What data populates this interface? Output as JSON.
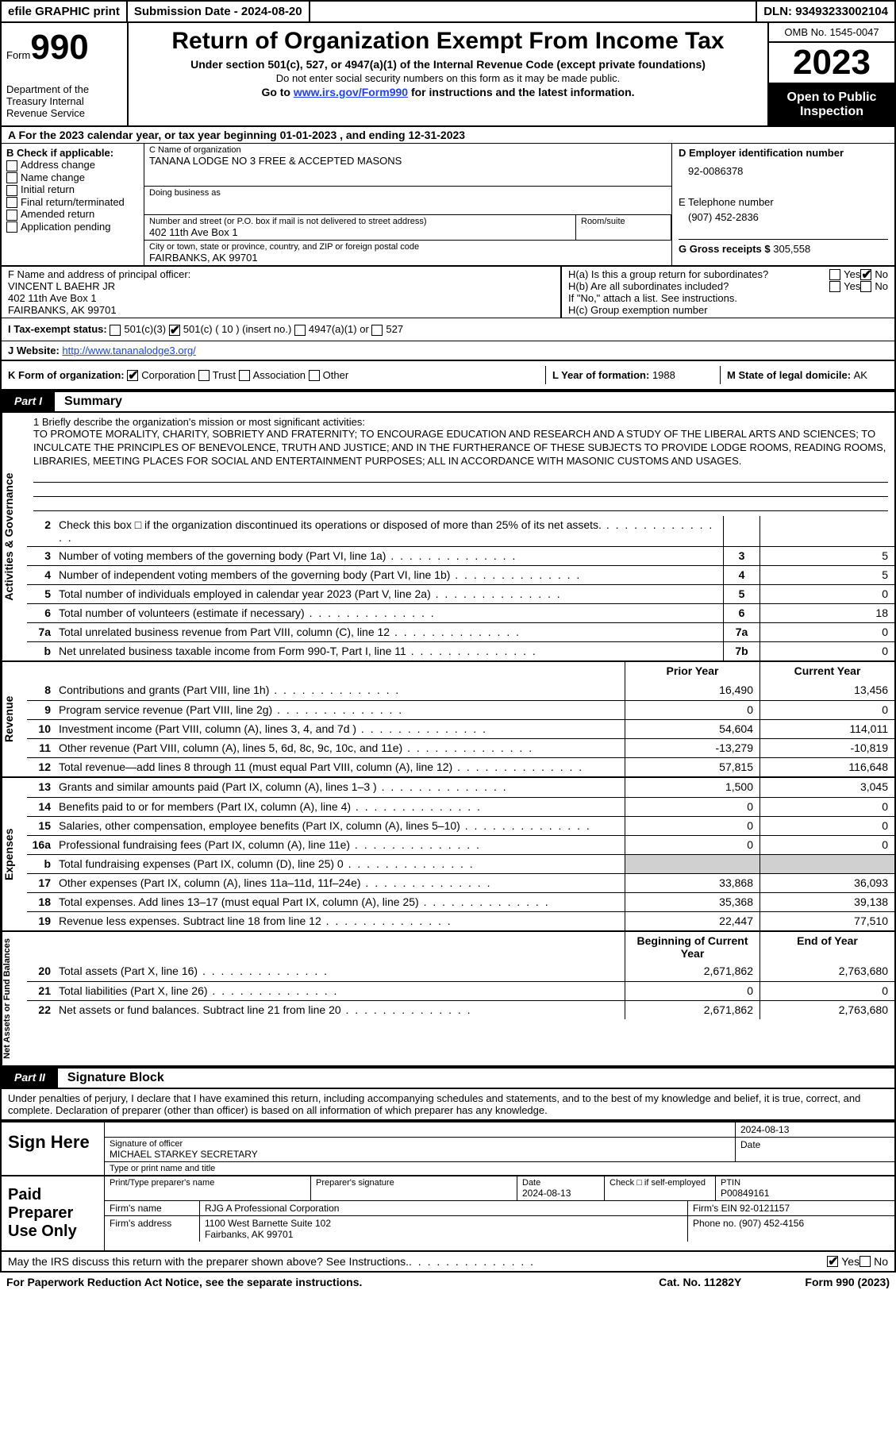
{
  "topbar": {
    "efile": "efile GRAPHIC print",
    "submission_label": "Submission Date - ",
    "submission_date": "2024-08-20",
    "dln_label": "DLN: ",
    "dln": "93493233002104"
  },
  "header": {
    "form_prefix": "Form",
    "form_no": "990",
    "dept": "Department of the Treasury Internal Revenue Service",
    "title": "Return of Organization Exempt From Income Tax",
    "sub": "Under section 501(c), 527, or 4947(a)(1) of the Internal Revenue Code (except private foundations)",
    "note": "Do not enter social security numbers on this form as it may be made public.",
    "goto_prefix": "Go to ",
    "goto_link": "www.irs.gov/Form990",
    "goto_suffix": " for instructions and the latest information.",
    "omb": "OMB No. 1545-0047",
    "year": "2023",
    "inspection": "Open to Public Inspection"
  },
  "rowA": "A  For the 2023 calendar year, or tax year beginning 01-01-2023    , and ending 12-31-2023",
  "colB": {
    "title": "B Check if applicable:",
    "items": [
      "Address change",
      "Name change",
      "Initial return",
      "Final return/terminated",
      "Amended return",
      "Application pending"
    ]
  },
  "colC": {
    "name_label": "C Name of organization",
    "name": "TANANA LODGE NO 3 FREE & ACCEPTED MASONS",
    "dba_label": "Doing business as",
    "dba": "",
    "street_label": "Number and street (or P.O. box if mail is not delivered to street address)",
    "street": "402 11th Ave Box 1",
    "room_label": "Room/suite",
    "city_label": "City or town, state or province, country, and ZIP or foreign postal code",
    "city": "FAIRBANKS, AK  99701"
  },
  "colD": {
    "ein_label": "D Employer identification number",
    "ein": "92-0086378",
    "phone_label": "E Telephone number",
    "phone": "(907) 452-2836",
    "gross_label": "G Gross receipts $ ",
    "gross": "305,558"
  },
  "rowF": {
    "label": "F  Name and address of principal officer:",
    "name": "VINCENT L BAEHR JR",
    "addr1": "402 11th Ave Box 1",
    "addr2": "FAIRBANKS, AK  99701"
  },
  "rowH": {
    "a_label": "H(a)  Is this a group return for subordinates?",
    "b_label": "H(b)  Are all subordinates included?",
    "b_note": "If \"No,\" attach a list. See instructions.",
    "c_label": "H(c)  Group exemption number"
  },
  "rowI": {
    "label": "I   Tax-exempt status:",
    "opts": [
      "501(c)(3)",
      "501(c) ( 10 ) (insert no.)",
      "4947(a)(1) or",
      "527"
    ]
  },
  "rowJ": {
    "label": "J   Website:",
    "value": "http://www.tananalodge3.org/"
  },
  "rowK": {
    "label": "K Form of organization:",
    "opts": [
      "Corporation",
      "Trust",
      "Association",
      "Other"
    ],
    "L_label": "L Year of formation: ",
    "L_val": "1988",
    "M_label": "M State of legal domicile: ",
    "M_val": "AK"
  },
  "part1": {
    "tab": "Part I",
    "title": "Summary"
  },
  "mission": {
    "label": "1   Briefly describe the organization's mission or most significant activities:",
    "text": "TO PROMOTE MORALITY, CHARITY, SOBRIETY AND FRATERNITY; TO ENCOURAGE EDUCATION AND RESEARCH AND A STUDY OF THE LIBERAL ARTS AND SCIENCES; TO INCULCATE THE PRINCIPLES OF BENEVOLENCE, TRUTH AND JUSTICE; AND IN THE FURTHERANCE OF THESE SUBJECTS TO PROVIDE LODGE ROOMS, READING ROOMS, LIBRARIES, MEETING PLACES FOR SOCIAL AND ENTERTAINMENT PURPOSES; ALL IN ACCORDANCE WITH MASONIC CUSTOMS AND USAGES."
  },
  "lines_gov": [
    {
      "n": "2",
      "desc": "Check this box □  if the organization discontinued its operations or disposed of more than 25% of its net assets.",
      "box": "",
      "v": ""
    },
    {
      "n": "3",
      "desc": "Number of voting members of the governing body (Part VI, line 1a)",
      "box": "3",
      "v": "5"
    },
    {
      "n": "4",
      "desc": "Number of independent voting members of the governing body (Part VI, line 1b)",
      "box": "4",
      "v": "5"
    },
    {
      "n": "5",
      "desc": "Total number of individuals employed in calendar year 2023 (Part V, line 2a)",
      "box": "5",
      "v": "0"
    },
    {
      "n": "6",
      "desc": "Total number of volunteers (estimate if necessary)",
      "box": "6",
      "v": "18"
    },
    {
      "n": "7a",
      "desc": "Total unrelated business revenue from Part VIII, column (C), line 12",
      "box": "7a",
      "v": "0"
    },
    {
      "n": "b",
      "desc": "Net unrelated business taxable income from Form 990-T, Part I, line 11",
      "box": "7b",
      "v": "0"
    }
  ],
  "col_headers": {
    "prior": "Prior Year",
    "current": "Current Year"
  },
  "lines_rev": [
    {
      "n": "8",
      "desc": "Contributions and grants (Part VIII, line 1h)",
      "p": "16,490",
      "c": "13,456"
    },
    {
      "n": "9",
      "desc": "Program service revenue (Part VIII, line 2g)",
      "p": "0",
      "c": "0"
    },
    {
      "n": "10",
      "desc": "Investment income (Part VIII, column (A), lines 3, 4, and 7d )",
      "p": "54,604",
      "c": "114,011"
    },
    {
      "n": "11",
      "desc": "Other revenue (Part VIII, column (A), lines 5, 6d, 8c, 9c, 10c, and 11e)",
      "p": "-13,279",
      "c": "-10,819"
    },
    {
      "n": "12",
      "desc": "Total revenue—add lines 8 through 11 (must equal Part VIII, column (A), line 12)",
      "p": "57,815",
      "c": "116,648"
    }
  ],
  "lines_exp": [
    {
      "n": "13",
      "desc": "Grants and similar amounts paid (Part IX, column (A), lines 1–3 )",
      "p": "1,500",
      "c": "3,045"
    },
    {
      "n": "14",
      "desc": "Benefits paid to or for members (Part IX, column (A), line 4)",
      "p": "0",
      "c": "0"
    },
    {
      "n": "15",
      "desc": "Salaries, other compensation, employee benefits (Part IX, column (A), lines 5–10)",
      "p": "0",
      "c": "0"
    },
    {
      "n": "16a",
      "desc": "Professional fundraising fees (Part IX, column (A), line 11e)",
      "p": "0",
      "c": "0"
    },
    {
      "n": "b",
      "desc": "Total fundraising expenses (Part IX, column (D), line 25) 0",
      "p": "",
      "c": "",
      "shaded": true
    },
    {
      "n": "17",
      "desc": "Other expenses (Part IX, column (A), lines 11a–11d, 11f–24e)",
      "p": "33,868",
      "c": "36,093"
    },
    {
      "n": "18",
      "desc": "Total expenses. Add lines 13–17 (must equal Part IX, column (A), line 25)",
      "p": "35,368",
      "c": "39,138"
    },
    {
      "n": "19",
      "desc": "Revenue less expenses. Subtract line 18 from line 12",
      "p": "22,447",
      "c": "77,510"
    }
  ],
  "col_headers2": {
    "begin": "Beginning of Current Year",
    "end": "End of Year"
  },
  "lines_net": [
    {
      "n": "20",
      "desc": "Total assets (Part X, line 16)",
      "p": "2,671,862",
      "c": "2,763,680"
    },
    {
      "n": "21",
      "desc": "Total liabilities (Part X, line 26)",
      "p": "0",
      "c": "0"
    },
    {
      "n": "22",
      "desc": "Net assets or fund balances. Subtract line 21 from line 20",
      "p": "2,671,862",
      "c": "2,763,680"
    }
  ],
  "vlabels": {
    "gov": "Activities & Governance",
    "rev": "Revenue",
    "exp": "Expenses",
    "net": "Net Assets or Fund Balances"
  },
  "part2": {
    "tab": "Part II",
    "title": "Signature Block"
  },
  "sig": {
    "decl": "Under penalties of perjury, I declare that I have examined this return, including accompanying schedules and statements, and to the best of my knowledge and belief, it is true, correct, and complete. Declaration of preparer (other than officer) is based on all information of which preparer has any knowledge.",
    "sign_here": "Sign Here",
    "date": "2024-08-13",
    "sig_label": "Signature of officer",
    "officer": "MICHAEL STARKEY  SECRETARY",
    "type_label": "Type or print name and title",
    "paid": "Paid Preparer Use Only",
    "prep_name_label": "Print/Type preparer's name",
    "prep_sig_label": "Preparer's signature",
    "prep_date_label": "Date",
    "prep_date": "2024-08-13",
    "check_label": "Check □ if self-employed",
    "ptin_label": "PTIN",
    "ptin": "P00849161",
    "firm_name_label": "Firm's name",
    "firm_name": "RJG A Professional Corporation",
    "firm_ein_label": "Firm's EIN",
    "firm_ein": "92-0121157",
    "firm_addr_label": "Firm's address",
    "firm_addr": "1100 West Barnette Suite 102\nFairbanks, AK  99701",
    "firm_phone_label": "Phone no.",
    "firm_phone": "(907) 452-4156"
  },
  "footer": {
    "q": "May the IRS discuss this return with the preparer shown above? See Instructions.",
    "notice": "For Paperwork Reduction Act Notice, see the separate instructions.",
    "cat": "Cat. No. 11282Y",
    "form": "Form 990 (2023)"
  }
}
